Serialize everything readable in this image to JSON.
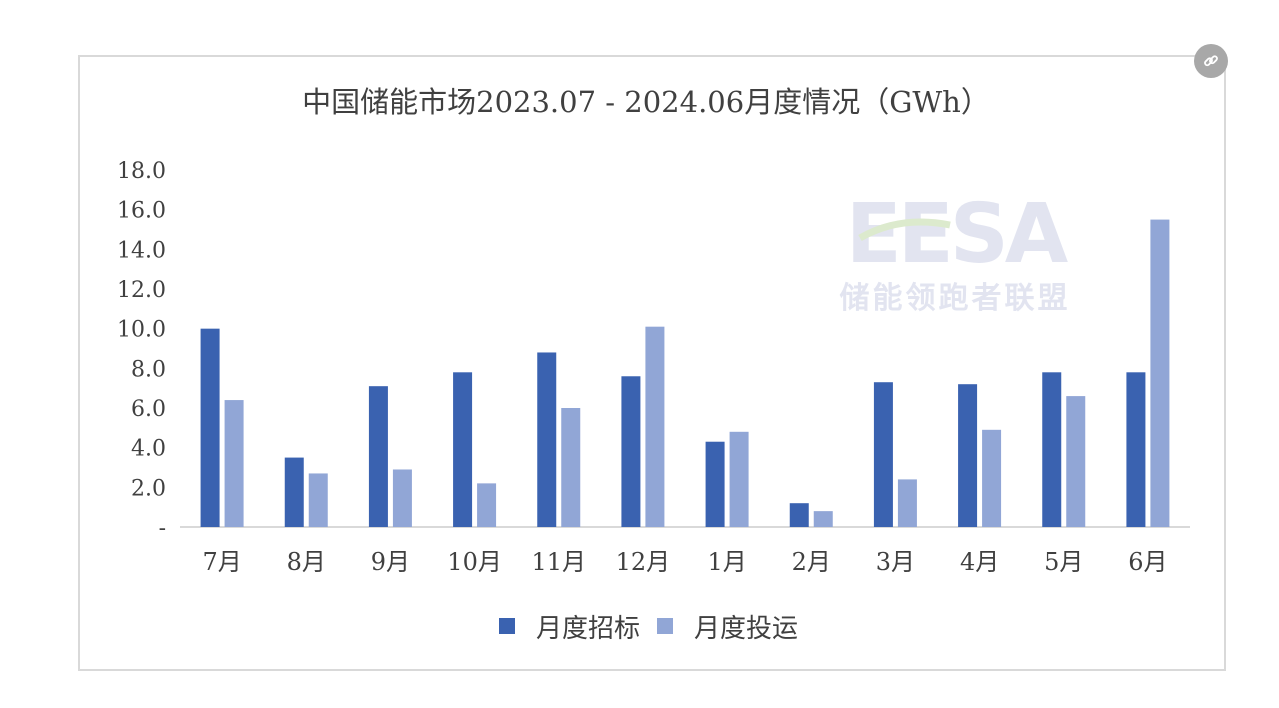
{
  "chart_data": {
    "type": "bar",
    "title": "中国储能市场2023.07 - 2024.06月度情况（GWh）",
    "categories": [
      "7月",
      "8月",
      "9月",
      "10月",
      "11月",
      "12月",
      "1月",
      "2月",
      "3月",
      "4月",
      "5月",
      "6月"
    ],
    "series": [
      {
        "name": "月度招标",
        "color": "#3a62b0",
        "values": [
          10.0,
          3.5,
          7.1,
          7.8,
          8.8,
          7.6,
          4.3,
          1.2,
          7.3,
          7.2,
          7.8,
          7.8
        ]
      },
      {
        "name": "月度投运",
        "color": "#91a6d6",
        "values": [
          6.4,
          2.7,
          2.9,
          2.2,
          6.0,
          10.1,
          4.8,
          0.8,
          2.4,
          4.9,
          6.6,
          15.5
        ]
      }
    ],
    "ylim": [
      0,
      18
    ],
    "yticks": [
      "-",
      "2.0",
      "4.0",
      "6.0",
      "8.0",
      "10.0",
      "12.0",
      "14.0",
      "16.0",
      "18.0"
    ],
    "grid": false,
    "legend_position": "bottom"
  },
  "watermark": {
    "logo_text": "EESA",
    "subtitle": "储能领跑者联盟"
  },
  "colors": {
    "axis": "#d9d9d9",
    "text": "#404040",
    "watermark": "#dfe2ef",
    "accent": "#f3d7c4"
  },
  "icons": {
    "share": "link-icon"
  }
}
